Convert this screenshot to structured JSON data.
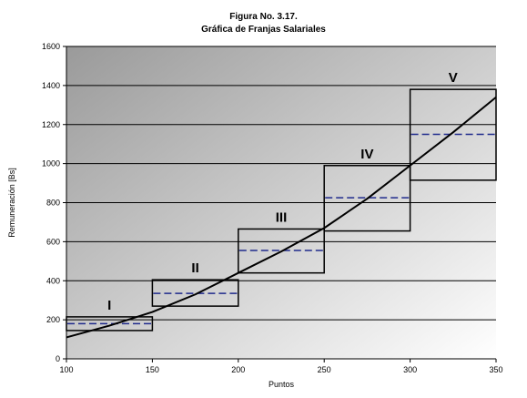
{
  "chart_data": {
    "type": "line",
    "title": "Figura No. 3.17.",
    "subtitle": "Gráfica de Franjas Salariales",
    "xlabel": "Puntos",
    "ylabel": "Remuneración [Bs]",
    "xlim": [
      100,
      350
    ],
    "ylim": [
      0,
      1600
    ],
    "x_ticks": [
      100,
      150,
      200,
      250,
      300,
      350
    ],
    "y_ticks": [
      0,
      200,
      400,
      600,
      800,
      1000,
      1200,
      1400,
      1600
    ],
    "grid": "horizontal",
    "curve": {
      "x": [
        100,
        125,
        150,
        175,
        200,
        225,
        250,
        275,
        300,
        325,
        350
      ],
      "y": [
        110,
        170,
        240,
        330,
        440,
        550,
        670,
        820,
        990,
        1160,
        1340
      ]
    },
    "bands": [
      {
        "label": "I",
        "x_start": 100,
        "x_end": 150,
        "min": 145,
        "max": 215,
        "midpoint": 180
      },
      {
        "label": "II",
        "x_start": 150,
        "x_end": 200,
        "min": 270,
        "max": 405,
        "midpoint": 335
      },
      {
        "label": "III",
        "x_start": 200,
        "x_end": 250,
        "min": 440,
        "max": 665,
        "midpoint": 555
      },
      {
        "label": "IV",
        "x_start": 250,
        "x_end": 300,
        "min": 655,
        "max": 990,
        "midpoint": 825
      },
      {
        "label": "V",
        "x_start": 300,
        "x_end": 350,
        "min": 915,
        "max": 1380,
        "midpoint": 1150
      }
    ],
    "colors": {
      "band_edge": "#000000",
      "midpoint_line": "#1f2a8c",
      "curve": "#000000",
      "plot_bg_dark": "#9a9a9a",
      "plot_bg_light": "#ffffff",
      "grid": "#000000"
    }
  }
}
